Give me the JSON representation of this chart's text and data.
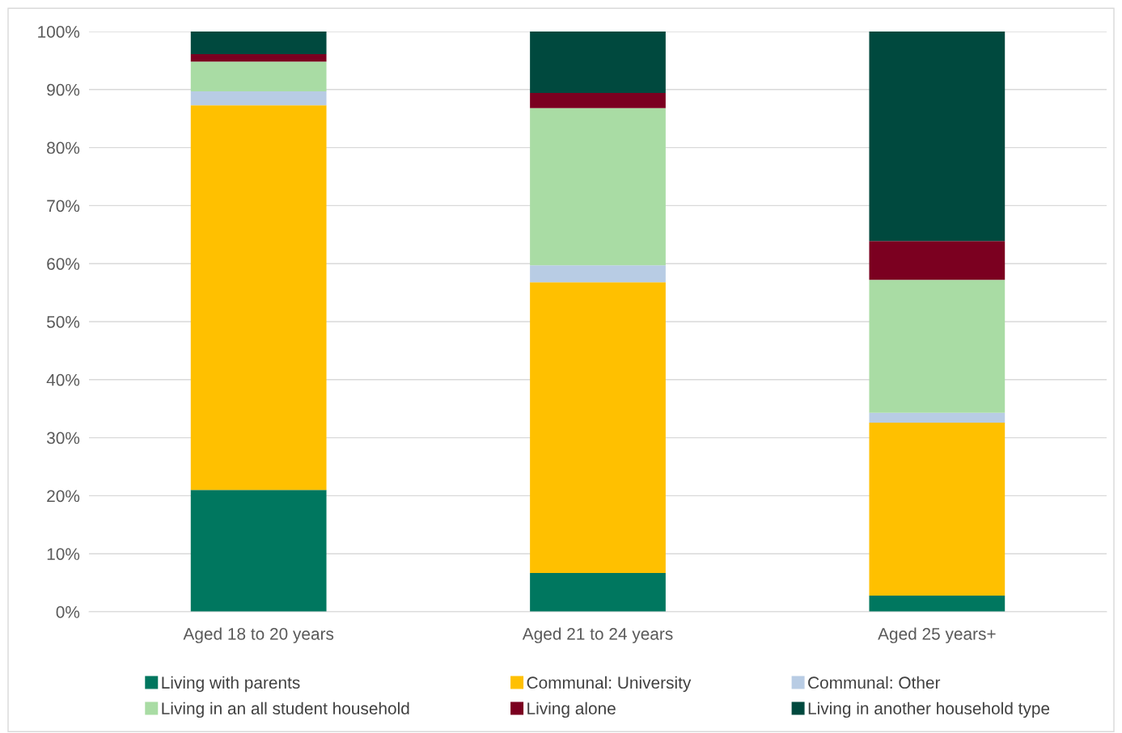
{
  "chart_data": {
    "type": "bar",
    "stacked": true,
    "categories": [
      "Aged 18 to 20 years",
      "Aged 21 to 24 years",
      "Aged 25 years+"
    ],
    "series": [
      {
        "name": "Living with parents",
        "color": "#00775f",
        "values": [
          21.0,
          6.7,
          2.8
        ]
      },
      {
        "name": "Communal: University",
        "color": "#ffc000",
        "values": [
          66.3,
          50.1,
          29.8
        ]
      },
      {
        "name": "Communal: Other",
        "color": "#b8cce4",
        "values": [
          2.4,
          2.9,
          1.7
        ]
      },
      {
        "name": "Living in an all student household",
        "color": "#a9dca4",
        "values": [
          5.1,
          27.1,
          22.9
        ]
      },
      {
        "name": "Living alone",
        "color": "#7b0020",
        "values": [
          1.3,
          2.6,
          6.7
        ]
      },
      {
        "name": "Living in another household type",
        "color": "#00493e",
        "values": [
          3.9,
          10.6,
          36.1
        ]
      }
    ],
    "ylim": [
      0,
      100
    ],
    "yticks": [
      {
        "value": 0,
        "label": "0%"
      },
      {
        "value": 10,
        "label": "10%"
      },
      {
        "value": 20,
        "label": "20%"
      },
      {
        "value": 30,
        "label": "30%"
      },
      {
        "value": 40,
        "label": "40%"
      },
      {
        "value": 50,
        "label": "50%"
      },
      {
        "value": 60,
        "label": "60%"
      },
      {
        "value": 70,
        "label": "70%"
      },
      {
        "value": 80,
        "label": "80%"
      },
      {
        "value": 90,
        "label": "90%"
      },
      {
        "value": 100,
        "label": "100%"
      }
    ],
    "grid": "y",
    "legend": "bottom"
  }
}
